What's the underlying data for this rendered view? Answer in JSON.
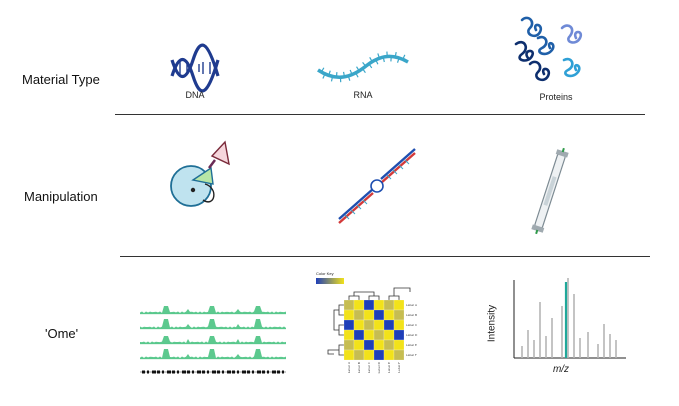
{
  "rows": [
    {
      "label": "Material Type"
    },
    {
      "label": "Manipulation"
    },
    {
      "label": "'Ome'"
    }
  ],
  "materials": [
    {
      "label": "DNA",
      "color": "#1f3b8f"
    },
    {
      "label": "RNA",
      "color": "#3aa6c9"
    },
    {
      "label": "Proteins",
      "color": "#1f5fa8"
    }
  ],
  "ome": {
    "heatmap": {
      "color_key_label": "Color Key",
      "row_labels": [
        "Label A",
        "Label B",
        "Label C",
        "Label D",
        "Label E",
        "Label F"
      ],
      "col_labels": [
        "Label A",
        "Label B",
        "Label C",
        "Label D",
        "Label E",
        "Label F"
      ],
      "low_color": "#1f3fb8",
      "high_color": "#f2e21a"
    },
    "mass_spec": {
      "xlabel": "m/z",
      "ylabel": "Intensity",
      "highlight_color": "#1fa89a"
    }
  }
}
